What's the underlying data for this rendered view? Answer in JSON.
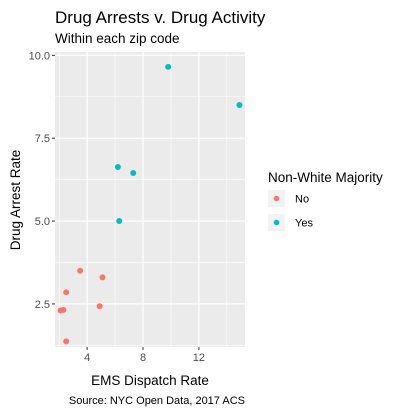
{
  "chart_data": {
    "type": "scatter",
    "title": "Drug Arrests v. Drug Activity",
    "subtitle": "Within each zip code",
    "xlabel": "EMS Dispatch Rate",
    "ylabel": "Drug Arrest Rate",
    "caption": "Source: NYC Open Data, 2017 ACS",
    "xlim": [
      1.7,
      15.3
    ],
    "ylim": [
      1.2,
      10.1
    ],
    "xticks": [
      4,
      8,
      12
    ],
    "yticks": [
      2.5,
      5.0,
      7.5,
      10.0
    ],
    "xtick_labels": [
      "4",
      "8",
      "12"
    ],
    "ytick_labels": [
      "2.5",
      "5.0",
      "7.5",
      "10.0"
    ],
    "legend": {
      "title": "Non-White Majority",
      "position": "right",
      "entries": [
        {
          "label": "No",
          "color": "#F8766D"
        },
        {
          "label": "Yes",
          "color": "#00BFC4"
        }
      ]
    },
    "series": [
      {
        "name": "No",
        "color": "#F8766D",
        "points": [
          {
            "x": 2.1,
            "y": 2.3
          },
          {
            "x": 2.3,
            "y": 2.32
          },
          {
            "x": 2.5,
            "y": 1.37
          },
          {
            "x": 2.5,
            "y": 2.85
          },
          {
            "x": 3.5,
            "y": 3.5
          },
          {
            "x": 4.9,
            "y": 2.43
          },
          {
            "x": 5.1,
            "y": 3.3
          }
        ]
      },
      {
        "name": "Yes",
        "color": "#00BFC4",
        "points": [
          {
            "x": 6.2,
            "y": 6.63
          },
          {
            "x": 6.3,
            "y": 5.0
          },
          {
            "x": 7.3,
            "y": 6.45
          },
          {
            "x": 9.8,
            "y": 9.65
          },
          {
            "x": 14.9,
            "y": 8.5
          }
        ]
      }
    ],
    "grid": true,
    "panel_background": "#EBEBEB"
  }
}
